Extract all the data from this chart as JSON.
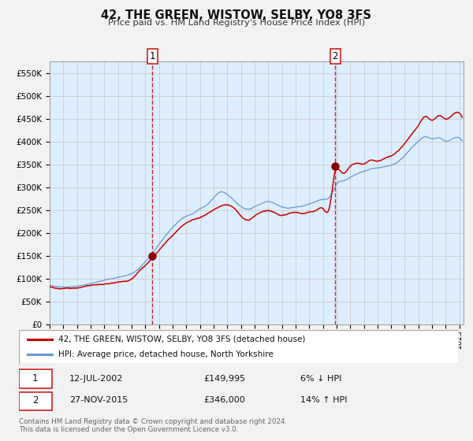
{
  "title": "42, THE GREEN, WISTOW, SELBY, YO8 3FS",
  "subtitle": "Price paid vs. HM Land Registry's House Price Index (HPI)",
  "red_label": "42, THE GREEN, WISTOW, SELBY, YO8 3FS (detached house)",
  "blue_label": "HPI: Average price, detached house, North Yorkshire",
  "red_color": "#cc0000",
  "blue_color": "#6699cc",
  "background_color": "#ddeeff",
  "grid_color": "#cccccc",
  "ylim": [
    0,
    575000
  ],
  "yticks": [
    0,
    50000,
    100000,
    150000,
    200000,
    250000,
    300000,
    350000,
    400000,
    450000,
    500000,
    550000
  ],
  "xlim_start": 1995.0,
  "xlim_end": 2025.3,
  "sale1_x": 2002.53,
  "sale1_y": 149995,
  "sale2_x": 2015.91,
  "sale2_y": 346000,
  "sale1_date": "12-JUL-2002",
  "sale1_price": "£149,995",
  "sale1_hpi": "6% ↓ HPI",
  "sale2_date": "27-NOV-2015",
  "sale2_price": "£346,000",
  "sale2_hpi": "14% ↑ HPI",
  "footer": "Contains HM Land Registry data © Crown copyright and database right 2024.\nThis data is licensed under the Open Government Licence v3.0."
}
